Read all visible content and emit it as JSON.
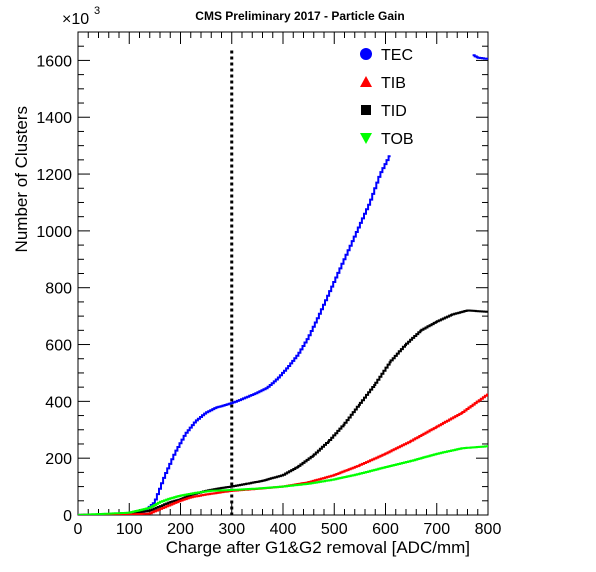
{
  "chart_data": {
    "type": "line",
    "title": "CMS Preliminary 2017  -  Particle Gain",
    "xlabel": "Charge after G1&G2 removal [ADC/mm]",
    "ylabel": "Number of Clusters",
    "y_multiplier_label": "×10",
    "y_multiplier_exponent": "3",
    "xlim": [
      0,
      800
    ],
    "ylim": [
      0,
      1700
    ],
    "x_ticks": [
      0,
      100,
      200,
      300,
      400,
      500,
      600,
      700,
      800
    ],
    "y_ticks": [
      0,
      200,
      400,
      600,
      800,
      1000,
      1200,
      1400,
      1600
    ],
    "x_tick_labels": [
      "0",
      "100",
      "200",
      "300",
      "400",
      "500",
      "600",
      "700",
      "800"
    ],
    "y_tick_labels": [
      "0",
      "200",
      "400",
      "600",
      "800",
      "1000",
      "1200",
      "1400",
      "1600"
    ],
    "grid": false,
    "legend_position": "top-right",
    "cut_line_x": 300,
    "series": [
      {
        "name": "TEC",
        "color": "#0000ff",
        "marker": "circle",
        "points": [
          [
            0,
            0
          ],
          [
            50,
            2
          ],
          [
            100,
            5
          ],
          [
            130,
            12
          ],
          [
            150,
            45
          ],
          [
            170,
            140
          ],
          [
            190,
            220
          ],
          [
            210,
            285
          ],
          [
            230,
            330
          ],
          [
            250,
            360
          ],
          [
            270,
            378
          ],
          [
            290,
            388
          ],
          [
            310,
            400
          ],
          [
            330,
            415
          ],
          [
            350,
            430
          ],
          [
            370,
            448
          ],
          [
            390,
            480
          ],
          [
            410,
            520
          ],
          [
            430,
            565
          ],
          [
            450,
            625
          ],
          [
            470,
            700
          ],
          [
            490,
            780
          ],
          [
            510,
            860
          ],
          [
            530,
            940
          ],
          [
            550,
            1020
          ],
          [
            570,
            1100
          ],
          [
            590,
            1200
          ],
          [
            610,
            1270
          ]
        ],
        "extra_points": [
          [
            770,
            1620
          ],
          [
            780,
            1610
          ],
          [
            800,
            1605
          ]
        ]
      },
      {
        "name": "TIB",
        "color": "#ff0000",
        "marker": "triangle-up",
        "points": [
          [
            0,
            0
          ],
          [
            100,
            2
          ],
          [
            140,
            5
          ],
          [
            160,
            20
          ],
          [
            180,
            35
          ],
          [
            200,
            50
          ],
          [
            220,
            62
          ],
          [
            250,
            72
          ],
          [
            280,
            80
          ],
          [
            300,
            85
          ],
          [
            350,
            92
          ],
          [
            400,
            100
          ],
          [
            450,
            115
          ],
          [
            500,
            140
          ],
          [
            550,
            175
          ],
          [
            600,
            215
          ],
          [
            650,
            260
          ],
          [
            700,
            310
          ],
          [
            750,
            360
          ],
          [
            800,
            425
          ]
        ]
      },
      {
        "name": "TID",
        "color": "#000000",
        "marker": "square",
        "points": [
          [
            0,
            0
          ],
          [
            100,
            5
          ],
          [
            140,
            15
          ],
          [
            160,
            30
          ],
          [
            180,
            45
          ],
          [
            200,
            55
          ],
          [
            220,
            70
          ],
          [
            250,
            85
          ],
          [
            280,
            95
          ],
          [
            300,
            100
          ],
          [
            330,
            110
          ],
          [
            360,
            120
          ],
          [
            400,
            140
          ],
          [
            430,
            170
          ],
          [
            460,
            210
          ],
          [
            490,
            260
          ],
          [
            520,
            320
          ],
          [
            550,
            390
          ],
          [
            580,
            460
          ],
          [
            610,
            540
          ],
          [
            640,
            600
          ],
          [
            670,
            650
          ],
          [
            700,
            680
          ],
          [
            730,
            705
          ],
          [
            760,
            720
          ],
          [
            800,
            715
          ]
        ]
      },
      {
        "name": "TOB",
        "color": "#00ff00",
        "marker": "triangle-down",
        "points": [
          [
            0,
            0
          ],
          [
            100,
            8
          ],
          [
            140,
            25
          ],
          [
            160,
            45
          ],
          [
            180,
            58
          ],
          [
            200,
            68
          ],
          [
            230,
            78
          ],
          [
            260,
            85
          ],
          [
            300,
            88
          ],
          [
            350,
            93
          ],
          [
            400,
            100
          ],
          [
            450,
            110
          ],
          [
            500,
            125
          ],
          [
            550,
            145
          ],
          [
            600,
            168
          ],
          [
            650,
            190
          ],
          [
            700,
            215
          ],
          [
            750,
            235
          ],
          [
            800,
            242
          ]
        ]
      }
    ]
  }
}
